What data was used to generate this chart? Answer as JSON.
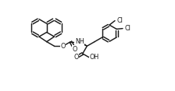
{
  "bg": "#ffffff",
  "lc": "#1a1a1a",
  "lw": 1.05,
  "fs": 5.8,
  "figw": 2.24,
  "figh": 1.17,
  "dpi": 100,
  "xlim": [
    -1.0,
    12.5
  ],
  "ylim": [
    -1.0,
    6.5
  ]
}
